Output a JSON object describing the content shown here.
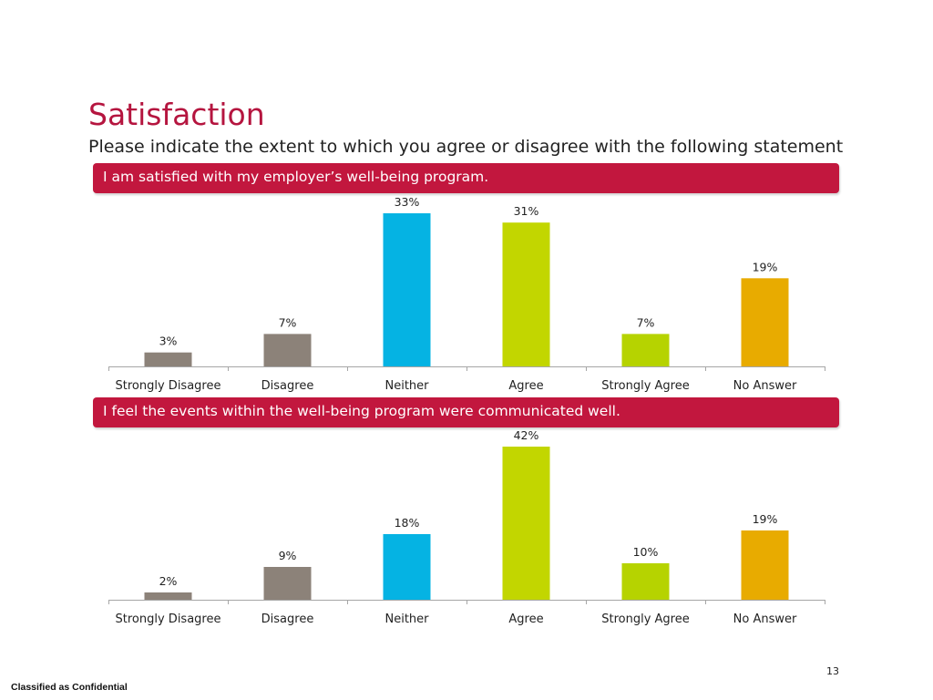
{
  "title": "Satisfaction",
  "subtitle": "Please indicate the extent to which you agree or disagree with the following statement",
  "page_number": "13",
  "footer": "Classified as Confidential",
  "colors": {
    "accent": "#b5153f",
    "banner": "#c2173e",
    "strongly_disagree": "#8c8279",
    "disagree": "#8c8279",
    "neither": "#05b3e3",
    "agree": "#c2d600",
    "strongly_agree": "#b6d300",
    "no_answer": "#e8ab00"
  },
  "chart_data": [
    {
      "type": "bar",
      "title": "I am satisfied with my employer’s well-being program.",
      "categories": [
        "Strongly Disagree",
        "Disagree",
        "Neither",
        "Agree",
        "Strongly Agree",
        "No Answer"
      ],
      "values": [
        3,
        7,
        33,
        31,
        7,
        19
      ],
      "value_labels": [
        "3%",
        "7%",
        "33%",
        "31%",
        "7%",
        "19%"
      ],
      "bar_colors": [
        "#8c8279",
        "#8c8279",
        "#05b3e3",
        "#c2d600",
        "#b6d300",
        "#e8ab00"
      ],
      "unit": "%",
      "ylim": [
        0,
        33
      ],
      "grid": false,
      "legend": "none"
    },
    {
      "type": "bar",
      "title": "I feel the events within the well-being program were communicated well.",
      "categories": [
        "Strongly Disagree",
        "Disagree",
        "Neither",
        "Agree",
        "Strongly Agree",
        "No Answer"
      ],
      "values": [
        2,
        9,
        18,
        42,
        10,
        19
      ],
      "value_labels": [
        "2%",
        "9%",
        "18%",
        "42%",
        "10%",
        "19%"
      ],
      "bar_colors": [
        "#8c8279",
        "#8c8279",
        "#05b3e3",
        "#c2d600",
        "#b6d300",
        "#e8ab00"
      ],
      "unit": "%",
      "ylim": [
        0,
        42
      ],
      "grid": false,
      "legend": "none"
    }
  ]
}
